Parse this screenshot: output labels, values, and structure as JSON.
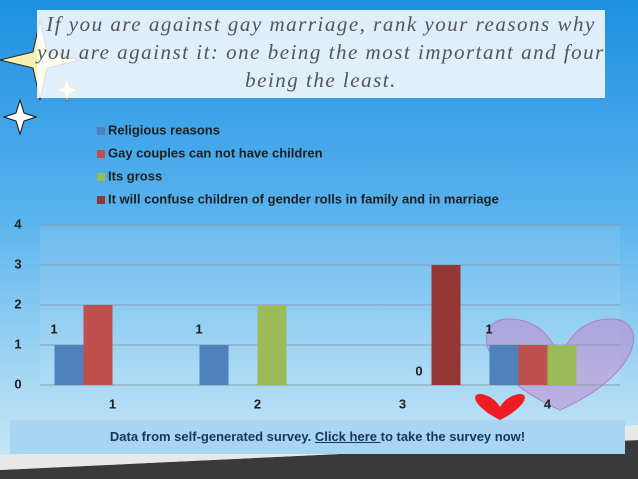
{
  "chart_data": {
    "type": "bar",
    "title": "If you are against gay marriage, rank your reasons why you are against it: one being the most important and four being the least.",
    "categories": [
      "1",
      "2",
      "3",
      "4"
    ],
    "series": [
      {
        "name": "Religious reasons",
        "color": "#4f81bd",
        "values": [
          1,
          1,
          0,
          1
        ],
        "data_labels": true
      },
      {
        "name": "Gay couples can not have children",
        "color": "#c0504d",
        "values": [
          2,
          0,
          0,
          1
        ]
      },
      {
        "name": "Its gross",
        "color": "#9bbb59",
        "values": [
          0,
          2,
          0,
          1
        ]
      },
      {
        "name": "It will confuse children of gender rolls in family and in marriage",
        "color": "#943634",
        "values": [
          0,
          0,
          3,
          0
        ]
      }
    ],
    "ylim": [
      0,
      4
    ],
    "yticks": [
      0,
      1,
      2,
      3,
      4
    ],
    "grid": true
  },
  "footer": {
    "before": "Data from self-generated survey. ",
    "link": "Click here ",
    "after": "to take the survey now!"
  }
}
